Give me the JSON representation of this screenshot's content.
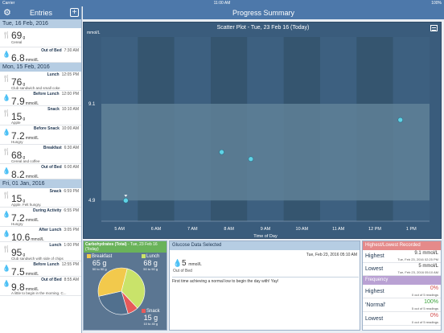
{
  "status_bar": {
    "left": "Carrier",
    "time": "11:00 AM",
    "battery": "100%"
  },
  "sidebar": {
    "title": "Entries",
    "add_label": "+",
    "gear_glyph": "⚙",
    "days": [
      {
        "header": "Tue, 16 Feb, 2016",
        "entries": [
          {
            "icon": "fork-knife-icon",
            "value": "69",
            "unit": "g",
            "label": "",
            "time": "",
            "note": "Cereal"
          },
          {
            "icon": "blood-drop-icon",
            "value": "6.8",
            "unit": "mmol/L",
            "label": "Out of Bed",
            "time": "7:30 AM",
            "note": ""
          }
        ]
      },
      {
        "header": "Mon, 15 Feb, 2016",
        "entries": [
          {
            "icon": "fork-knife-icon",
            "value": "76",
            "unit": "g",
            "label": "Lunch",
            "time": "12:05 PM",
            "note": "Club sandwich and small coke"
          },
          {
            "icon": "blood-drop-icon",
            "value": "7.9",
            "unit": "mmol/L",
            "label": "Before Lunch",
            "time": "12:00 PM",
            "note": ""
          },
          {
            "icon": "fork-knife-icon",
            "value": "15",
            "unit": "g",
            "label": "Snack",
            "time": "10:10 AM",
            "note": "Apple"
          },
          {
            "icon": "blood-drop-icon",
            "value": "7.2",
            "unit": "mmol/L",
            "label": "Before Snack",
            "time": "10:00 AM",
            "note": "Hungry"
          },
          {
            "icon": "fork-knife-icon",
            "value": "68",
            "unit": "g",
            "label": "Breakfast",
            "time": "6:30 AM",
            "note": "Cereal and coffee"
          },
          {
            "icon": "blood-drop-icon",
            "value": "8.2",
            "unit": "mmol/L",
            "label": "Out of Bed",
            "time": "6:00 AM",
            "note": ""
          }
        ]
      },
      {
        "header": "Fri, 01 Jan, 2016",
        "entries": [
          {
            "icon": "fork-knife-icon",
            "value": "15",
            "unit": "g",
            "label": "Snack",
            "time": "6:59 PM",
            "note": "Apple. Felt hungry."
          },
          {
            "icon": "blood-drop-icon",
            "value": "7.2",
            "unit": "mmol/L",
            "label": "During Activity",
            "time": "6:55 PM",
            "note": "Hungry"
          },
          {
            "icon": "blood-drop-icon",
            "value": "10.6",
            "unit": "mmol/L",
            "label": "After Lunch",
            "time": "3:05 PM",
            "note": ""
          },
          {
            "icon": "fork-knife-icon",
            "value": "95",
            "unit": "g",
            "label": "Lunch",
            "time": "1:00 PM",
            "note": "Club sandwich with side of chips"
          },
          {
            "icon": "blood-drop-icon",
            "value": "7.5",
            "unit": "mmol/L",
            "label": "Before Lunch",
            "time": "12:55 PM",
            "note": ""
          },
          {
            "icon": "blood-drop-icon",
            "value": "9.8",
            "unit": "mmol/L",
            "label": "Out of Bed",
            "time": "8:55 AM",
            "note": "A little to begin in the morning. C..."
          }
        ]
      }
    ]
  },
  "header": {
    "title": "Progress Summary"
  },
  "chart_data": {
    "type": "scatter",
    "title": "Scatter Plot - Tue, 23 Feb 16 (Today)",
    "ylabel": "mmol/L",
    "xlabel": "Time of Day",
    "x_ticks": [
      "5 AM",
      "6 AM",
      "7 AM",
      "8 AM",
      "9 AM",
      "10 AM",
      "11 AM",
      "12 PM",
      "1 PM"
    ],
    "xlim": [
      4.5,
      13.5
    ],
    "ylim": [
      4.0,
      12.0
    ],
    "target_range": [
      4.9,
      9.1
    ],
    "y_ticks": [
      "4.9",
      "9.1"
    ],
    "points": [
      {
        "x": 5.17,
        "y": 4.9
      },
      {
        "x": 7.8,
        "y": 7.0
      },
      {
        "x": 8.6,
        "y": 6.7
      },
      {
        "x": 12.7,
        "y": 8.4
      }
    ],
    "colors": {
      "background": "#3a5c7c",
      "band": "#5f8198",
      "point": "#5fd3e6"
    }
  },
  "carbs": {
    "title_bold": "Carbohydrates (Total)",
    "title_rest": " - Tue, 23 Feb 16 (Today)",
    "meals": [
      {
        "name": "Breakfast",
        "grams": "65 g",
        "range": "50 to 90 g",
        "value": 65,
        "color": "#f2c94c"
      },
      {
        "name": "Lunch",
        "grams": "68 g",
        "range": "50 to 90 g",
        "value": 68,
        "color": "#c9e36a"
      },
      {
        "name": "Snack",
        "grams": "15 g",
        "range": "10 to 40 g",
        "value": 15,
        "color": "#e65a5a"
      }
    ],
    "other_value": 52,
    "other_color": "#51708e"
  },
  "glucose": {
    "title": "Glucose Data Selected",
    "date": "Tue, Feb 23, 2016  05:10 AM",
    "value": "5",
    "unit": "mmol/L",
    "label": "Out of Bed",
    "comment": "First time achieving a normal low to begin the day with! Yay!"
  },
  "highlow": {
    "title": "Highest/Lowest Recorded",
    "rows": [
      {
        "key": "Highest",
        "value": "9.1 mmol/L",
        "date": "Tue, Feb 23, 2016  02:25 PM"
      },
      {
        "key": "Lowest",
        "value": "5 mmol/L",
        "date": "Tue, Feb 23, 2016  05:10 AM"
      }
    ]
  },
  "frequency": {
    "title": "Frequency",
    "rows": [
      {
        "key": "Highest",
        "value": "0%",
        "detail": "0 out of 5 readings",
        "color": "#d24b4b"
      },
      {
        "key": "'Normal'",
        "value": "100%",
        "detail": "5 out of 5 readings",
        "color": "#3aa33a"
      },
      {
        "key": "Lowest",
        "value": "0%",
        "detail": "0 out of 5 readings",
        "color": "#d24b4b"
      }
    ]
  }
}
